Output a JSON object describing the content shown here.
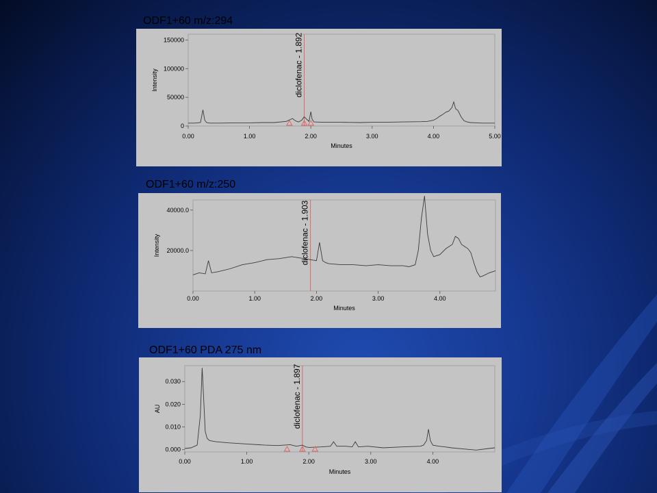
{
  "colors": {
    "background_dark": "#030c24",
    "background_blue": "#1f4bb0",
    "panel_bg": "#c4c4c4",
    "trace": "#3a3a3a",
    "marker": "#e06060"
  },
  "chart_data": [
    {
      "type": "line",
      "title": "ODF1+60 m/z:294",
      "xlabel": "Minutes",
      "ylabel": "Intensity",
      "xlim": [
        0,
        5.0
      ],
      "ylim": [
        0,
        160000
      ],
      "x_ticks": [
        "0.00",
        "1.00",
        "2.00",
        "3.00",
        "4.00",
        "5.00"
      ],
      "y_ticks": [
        "0",
        "50000",
        "100000",
        "150000"
      ],
      "grid": false,
      "annotations": [
        {
          "label": "diclofenac - 1.892",
          "x": 1.892
        }
      ],
      "series": [
        {
          "x": [
            0,
            0.1,
            0.2,
            0.24,
            0.27,
            0.3,
            0.35,
            0.5,
            0.8,
            1.0,
            1.2,
            1.4,
            1.6,
            1.7,
            1.75,
            1.8,
            1.85,
            1.892,
            1.93,
            1.97,
            2.0,
            2.02,
            2.05,
            2.2,
            2.5,
            2.8,
            3.0,
            3.2,
            3.5,
            3.8,
            3.9,
            4.0,
            4.05,
            4.1,
            4.15,
            4.2,
            4.25,
            4.3,
            4.33,
            4.36,
            4.4,
            4.45,
            4.5,
            4.55,
            4.6,
            4.7,
            4.8,
            4.9,
            5.0
          ],
          "y": [
            5000,
            5000,
            6000,
            28000,
            10000,
            6000,
            5000,
            5000,
            5500,
            5500,
            6000,
            6000,
            8000,
            13000,
            9000,
            7000,
            10000,
            16000,
            12000,
            8000,
            25000,
            12000,
            7000,
            6500,
            6500,
            6000,
            6500,
            6500,
            7000,
            7500,
            8000,
            10000,
            13000,
            17000,
            20000,
            24000,
            26000,
            32000,
            42000,
            30000,
            27000,
            16000,
            9000,
            7000,
            6000,
            5500,
            5000,
            5000,
            5000
          ]
        }
      ]
    },
    {
      "type": "line",
      "title": "ODF1+60  m/z:250",
      "xlabel": "Minutes",
      "ylabel": "Intensity",
      "xlim": [
        0,
        4.9
      ],
      "ylim": [
        0,
        45000
      ],
      "x_ticks": [
        "0.00",
        "1.00",
        "2.00",
        "3.00",
        "4.00"
      ],
      "y_ticks": [
        "20000.0",
        "40000.0"
      ],
      "grid": false,
      "annotations": [
        {
          "label": "diclofenac - 1.903",
          "x": 1.903
        }
      ],
      "series": [
        {
          "x": [
            0,
            0.1,
            0.2,
            0.25,
            0.3,
            0.4,
            0.6,
            0.8,
            1.0,
            1.2,
            1.4,
            1.6,
            1.8,
            1.9,
            2.0,
            2.05,
            2.1,
            2.15,
            2.2,
            2.4,
            2.6,
            2.8,
            3.0,
            3.2,
            3.4,
            3.5,
            3.6,
            3.65,
            3.7,
            3.75,
            3.8,
            3.85,
            3.9,
            4.0,
            4.1,
            4.2,
            4.25,
            4.3,
            4.35,
            4.4,
            4.45,
            4.5,
            4.55,
            4.6,
            4.65,
            4.7,
            4.8,
            4.9
          ],
          "y": [
            8000,
            9000,
            8500,
            15000,
            9000,
            9500,
            11000,
            13000,
            14000,
            15500,
            16000,
            17000,
            16000,
            15500,
            15000,
            24000,
            15000,
            14000,
            13500,
            13000,
            13000,
            12500,
            13000,
            12500,
            12500,
            12000,
            13000,
            20000,
            36000,
            47000,
            28000,
            20000,
            17000,
            18000,
            21000,
            23000,
            27000,
            26000,
            23000,
            22000,
            21000,
            19000,
            14000,
            9500,
            7000,
            7500,
            9000,
            10000
          ]
        }
      ]
    },
    {
      "type": "line",
      "title": "ODF1+60 PDA 275 nm",
      "xlabel": "Minutes",
      "ylabel": "AU",
      "xlim": [
        0,
        5.0
      ],
      "ylim": [
        -0.001,
        0.037
      ],
      "x_ticks": [
        "0.00",
        "1.00",
        "2.00",
        "3.00",
        "4.00"
      ],
      "y_ticks": [
        "0.000",
        "0.010",
        "0.020",
        "0.030"
      ],
      "grid": false,
      "annotations": [
        {
          "label": "diclofenac - 1.897",
          "x": 1.897
        }
      ],
      "series": [
        {
          "x": [
            0,
            0.1,
            0.2,
            0.25,
            0.28,
            0.3,
            0.33,
            0.36,
            0.4,
            0.5,
            0.7,
            1.0,
            1.3,
            1.5,
            1.7,
            1.8,
            1.897,
            1.95,
            2.0,
            2.2,
            2.35,
            2.4,
            2.45,
            2.6,
            2.7,
            2.75,
            2.8,
            2.95,
            3.2,
            3.5,
            3.8,
            3.85,
            3.9,
            3.93,
            3.96,
            4.0,
            4.1,
            4.2,
            4.3,
            4.5,
            4.7,
            4.9,
            5.0
          ],
          "y": [
            0.0005,
            0.0008,
            0.002,
            0.015,
            0.036,
            0.025,
            0.008,
            0.005,
            0.004,
            0.0035,
            0.003,
            0.0025,
            0.002,
            0.0018,
            0.0022,
            0.0015,
            0.002,
            0.0012,
            0.001,
            0.0012,
            0.0015,
            0.0035,
            0.0015,
            0.0015,
            0.0012,
            0.0035,
            0.0012,
            0.0015,
            0.0008,
            0.0012,
            0.0015,
            0.002,
            0.004,
            0.009,
            0.004,
            0.002,
            0.0015,
            0.0012,
            0.0008,
            0.0003,
            -0.0002,
            0.0005,
            0.0008
          ]
        }
      ]
    }
  ]
}
